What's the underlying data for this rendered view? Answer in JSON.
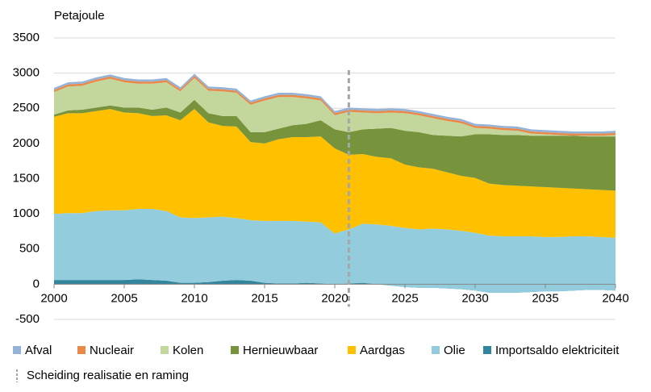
{
  "chart_data": {
    "type": "stacked_area",
    "y_label": "Petajoule",
    "x": [
      2000,
      2001,
      2002,
      2003,
      2004,
      2005,
      2006,
      2007,
      2008,
      2009,
      2010,
      2011,
      2012,
      2013,
      2014,
      2015,
      2016,
      2017,
      2018,
      2019,
      2020,
      2021,
      2022,
      2023,
      2024,
      2025,
      2026,
      2027,
      2028,
      2029,
      2030,
      2031,
      2032,
      2033,
      2034,
      2035,
      2036,
      2037,
      2038,
      2039,
      2040
    ],
    "xlim": [
      2000,
      2040
    ],
    "xticks": [
      2000,
      2005,
      2010,
      2015,
      2020,
      2025,
      2030,
      2035,
      2040
    ],
    "ylim": [
      -500,
      3500
    ],
    "yticks": [
      -500,
      0,
      500,
      1000,
      1500,
      2000,
      2500,
      3000,
      3500
    ],
    "grid": true,
    "series": [
      {
        "name": "Importsaldo elektriciteit",
        "color": "#31859c",
        "values": [
          60,
          60,
          60,
          60,
          60,
          60,
          70,
          60,
          50,
          20,
          20,
          30,
          50,
          60,
          50,
          20,
          10,
          10,
          20,
          10,
          0,
          10,
          20,
          0,
          -20,
          -40,
          -50,
          -50,
          -60,
          -70,
          -90,
          -120,
          -120,
          -120,
          -110,
          -100,
          -100,
          -90,
          -80,
          -80,
          -90
        ]
      },
      {
        "name": "Olie",
        "color": "#93cddd",
        "values": [
          940,
          950,
          950,
          980,
          990,
          990,
          1000,
          1010,
          990,
          930,
          920,
          920,
          910,
          880,
          860,
          880,
          890,
          890,
          870,
          870,
          720,
          770,
          840,
          850,
          850,
          840,
          830,
          840,
          840,
          830,
          820,
          810,
          800,
          800,
          790,
          770,
          770,
          770,
          760,
          750,
          750
        ]
      },
      {
        "name": "Aardgas",
        "color": "#ffc000",
        "values": [
          1380,
          1420,
          1420,
          1420,
          1440,
          1390,
          1360,
          1320,
          1360,
          1380,
          1550,
          1350,
          1290,
          1300,
          1110,
          1100,
          1160,
          1190,
          1200,
          1220,
          1210,
          1060,
          990,
          960,
          960,
          900,
          880,
          850,
          810,
          780,
          780,
          740,
          730,
          720,
          710,
          710,
          700,
          680,
          670,
          670,
          670
        ]
      },
      {
        "name": "Hernieuwbaar",
        "color": "#77933c",
        "values": [
          30,
          40,
          50,
          50,
          50,
          70,
          80,
          90,
          110,
          110,
          130,
          130,
          140,
          150,
          140,
          160,
          150,
          170,
          190,
          230,
          270,
          320,
          350,
          400,
          430,
          480,
          500,
          480,
          520,
          560,
          620,
          700,
          710,
          720,
          720,
          730,
          740,
          750,
          750,
          760,
          770
        ]
      },
      {
        "name": "Kolen",
        "color": "#c3d69b",
        "values": [
          320,
          340,
          340,
          370,
          380,
          360,
          340,
          370,
          360,
          300,
          310,
          320,
          350,
          330,
          390,
          450,
          450,
          400,
          360,
          280,
          200,
          290,
          240,
          220,
          220,
          250,
          240,
          240,
          210,
          190,
          90,
          80,
          70,
          60,
          30,
          20,
          10,
          0,
          10,
          10,
          20
        ]
      },
      {
        "name": "Nucleair",
        "color": "#e8894a",
        "values": [
          30,
          30,
          30,
          30,
          30,
          30,
          30,
          30,
          30,
          30,
          30,
          30,
          30,
          30,
          30,
          30,
          30,
          30,
          30,
          30,
          30,
          30,
          30,
          30,
          30,
          30,
          30,
          30,
          30,
          30,
          30,
          30,
          30,
          30,
          30,
          30,
          30,
          30,
          30,
          30,
          30
        ]
      },
      {
        "name": "Afval",
        "color": "#95b3d7",
        "values": [
          30,
          30,
          30,
          30,
          30,
          30,
          30,
          30,
          30,
          30,
          30,
          30,
          30,
          30,
          30,
          30,
          30,
          30,
          30,
          30,
          30,
          30,
          30,
          30,
          30,
          30,
          30,
          30,
          30,
          30,
          30,
          30,
          30,
          30,
          30,
          30,
          30,
          30,
          30,
          30,
          30
        ]
      }
    ],
    "divider": {
      "label": "Scheiding realisatie en raming",
      "x": 2021,
      "color": "#a6a6a6"
    }
  }
}
